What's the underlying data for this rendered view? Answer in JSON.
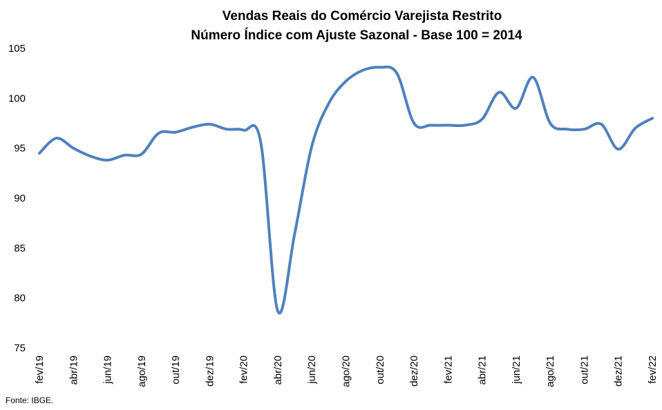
{
  "chart_data": {
    "type": "line",
    "title": "Vendas Reais do Comércio Varejista Restrito",
    "subtitle": "Número Índice com Ajuste Sazonal - Base 100 = 2014",
    "xlabel": "",
    "ylabel": "",
    "ylim": [
      75,
      105
    ],
    "yticks": [
      75,
      80,
      85,
      90,
      95,
      100,
      105
    ],
    "grid": false,
    "legend": "none",
    "line_color": "#4f81bd",
    "x": [
      "fev/19",
      "mar/19",
      "abr/19",
      "mai/19",
      "jun/19",
      "jul/19",
      "ago/19",
      "set/19",
      "out/19",
      "nov/19",
      "dez/19",
      "jan/20",
      "fev/20",
      "mar/20",
      "abr/20",
      "mai/20",
      "jun/20",
      "jul/20",
      "ago/20",
      "set/20",
      "out/20",
      "nov/20",
      "dez/20",
      "jan/21",
      "fev/21",
      "mar/21",
      "abr/21",
      "mai/21",
      "jun/21",
      "jul/21",
      "ago/21",
      "set/21",
      "out/21",
      "nov/21",
      "dez/21",
      "jan/22",
      "fev/22"
    ],
    "xtick_labels": [
      "fev/19",
      "abr/19",
      "jun/19",
      "ago/19",
      "out/19",
      "dez/19",
      "fev/20",
      "abr/20",
      "jun/20",
      "ago/20",
      "out/20",
      "dez/20",
      "fev/21",
      "abr/21",
      "jun/21",
      "ago/21",
      "out/21",
      "dez/21",
      "fev/22"
    ],
    "series": [
      {
        "values": [
          94.5,
          96.0,
          95.0,
          94.2,
          93.8,
          94.3,
          94.4,
          96.5,
          96.6,
          97.1,
          97.4,
          96.9,
          96.8,
          95.6,
          78.7,
          86.5,
          95.2,
          99.5,
          101.7,
          102.8,
          103.1,
          102.5,
          97.5,
          97.3,
          97.3,
          97.3,
          97.9,
          100.6,
          99.0,
          102.1,
          97.5,
          96.9,
          96.9,
          97.4,
          94.9,
          97.0,
          98.0
        ]
      }
    ]
  },
  "source": "Fonte: IBGE."
}
